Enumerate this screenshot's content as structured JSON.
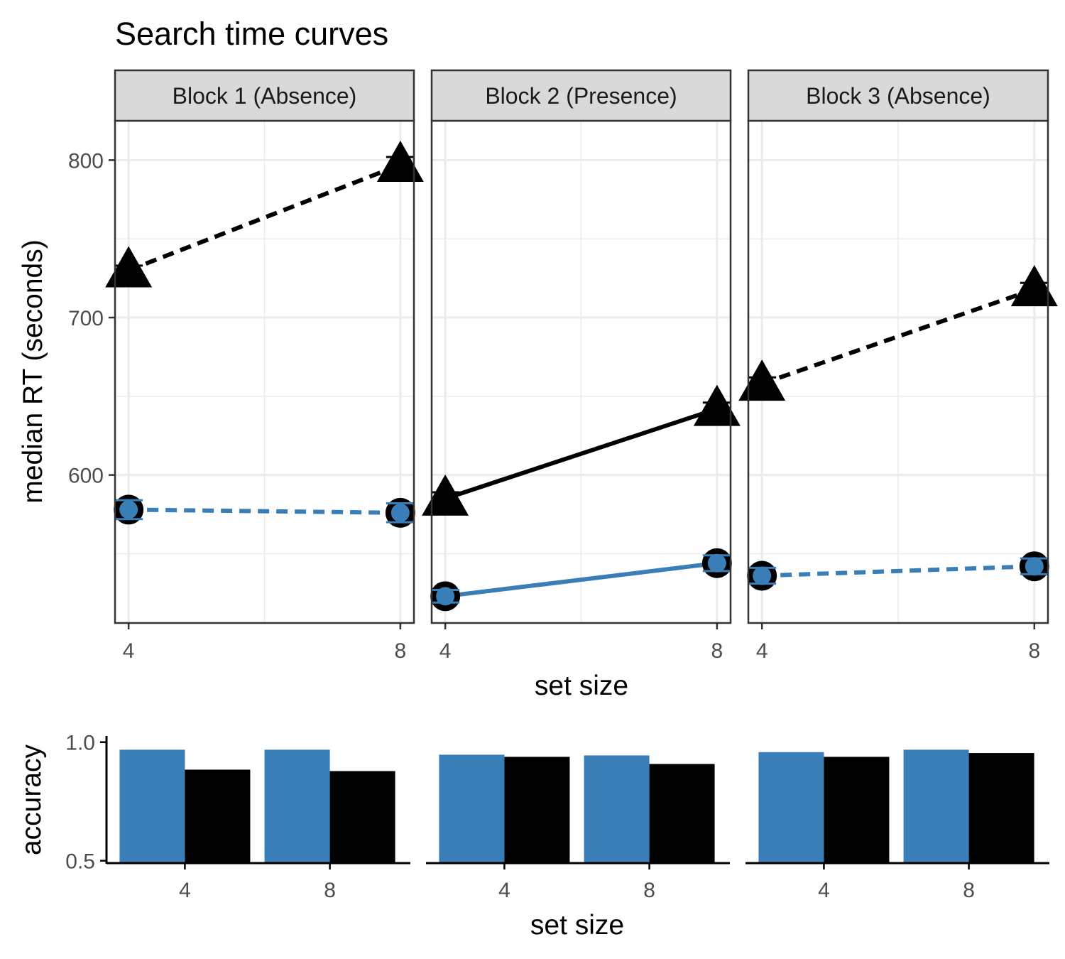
{
  "title": "Search time curves",
  "colors": {
    "present": "#3a7eb8",
    "absent": "#000000",
    "grid": "#ebebeb",
    "strip": "#d9d9d9",
    "panel_border": "#333333",
    "tick_text": "#4d4d4d"
  },
  "chart_data": [
    {
      "type": "line",
      "title": "Search time curves",
      "xlabel": "set size",
      "ylabel": "median RT (seconds)",
      "x": [
        4,
        8
      ],
      "ylim": [
        506,
        825
      ],
      "y_ticks": [
        600,
        700,
        800
      ],
      "grid": true,
      "facets": [
        {
          "label": "Block 1 (Absence)",
          "series": [
            {
              "marker": "triangle",
              "color": "#000000",
              "linetype": "dashed",
              "values": [
                730,
                797
              ],
              "error": [
                3,
                5
              ]
            },
            {
              "marker": "circle",
              "color": "#3a7eb8",
              "linetype": "dashed",
              "values": [
                578,
                576
              ],
              "error": [
                6,
                6
              ]
            }
          ]
        },
        {
          "label": "Block 2 (Presence)",
          "series": [
            {
              "marker": "triangle",
              "color": "#000000",
              "linetype": "solid",
              "values": [
                585,
                642
              ],
              "error": [
                4,
                4
              ]
            },
            {
              "marker": "circle",
              "color": "#3a7eb8",
              "linetype": "solid",
              "values": [
                523,
                544
              ],
              "error": [
                4,
                5
              ]
            }
          ]
        },
        {
          "label": "Block 3 (Absence)",
          "series": [
            {
              "marker": "triangle",
              "color": "#000000",
              "linetype": "dashed",
              "values": [
                658,
                718
              ],
              "error": [
                4,
                4
              ]
            },
            {
              "marker": "circle",
              "color": "#3a7eb8",
              "linetype": "dashed",
              "values": [
                536,
                542
              ],
              "error": [
                5,
                5
              ]
            }
          ]
        }
      ]
    },
    {
      "type": "bar",
      "xlabel": "set size",
      "ylabel": "accuracy",
      "categories": [
        "4",
        "8"
      ],
      "ylim": [
        0.49,
        1.0
      ],
      "y_ticks": [
        0.5,
        1.0
      ],
      "y_tick_labels": [
        "0.5",
        "1.0"
      ],
      "facets": [
        {
          "series": [
            {
              "color": "#3a7eb8",
              "values": [
                0.968,
                0.968
              ]
            },
            {
              "color": "#000000",
              "values": [
                0.884,
                0.878
              ]
            }
          ]
        },
        {
          "series": [
            {
              "color": "#3a7eb8",
              "values": [
                0.947,
                0.944
              ]
            },
            {
              "color": "#000000",
              "values": [
                0.938,
                0.908
              ]
            }
          ]
        },
        {
          "series": [
            {
              "color": "#3a7eb8",
              "values": [
                0.958,
                0.968
              ]
            },
            {
              "color": "#000000",
              "values": [
                0.938,
                0.954
              ]
            }
          ]
        }
      ]
    }
  ]
}
